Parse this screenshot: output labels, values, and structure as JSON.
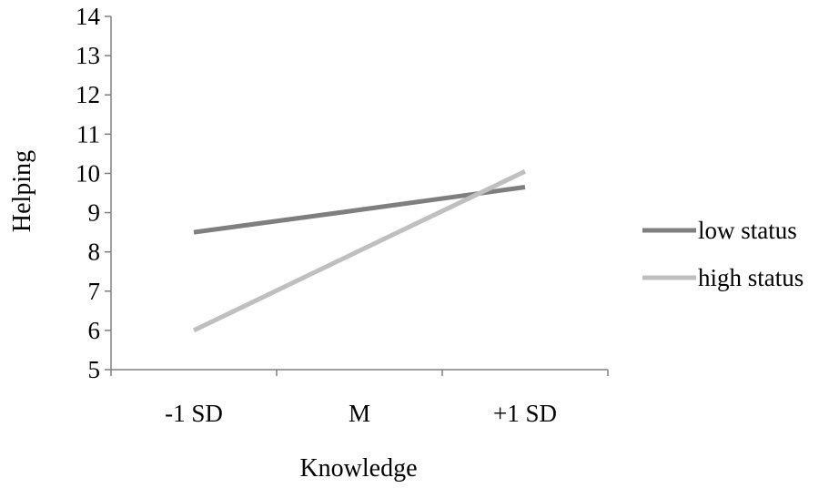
{
  "chart_data": {
    "type": "line",
    "categories": [
      "-1 SD",
      "M",
      "+1 SD"
    ],
    "series": [
      {
        "name": "low status",
        "values": [
          8.5,
          9.07,
          9.65
        ],
        "color": "#7f7f7f"
      },
      {
        "name": "high status",
        "values": [
          6.0,
          8.03,
          10.05
        ],
        "color": "#bfbfbf"
      }
    ],
    "y_ticks": [
      "5",
      "6",
      "7",
      "8",
      "9",
      "10",
      "11",
      "12",
      "13",
      "14"
    ],
    "ylim": [
      5,
      14
    ],
    "xlabel": "Knowledge",
    "ylabel": "Helping",
    "grid": false,
    "legend_position": "right"
  }
}
